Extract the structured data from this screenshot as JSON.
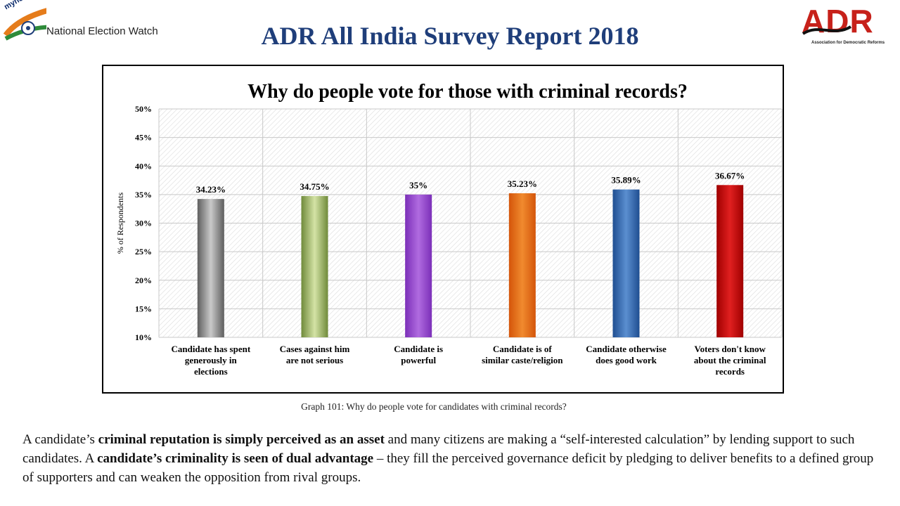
{
  "header": {
    "myneta_label": "myneta.info",
    "logo_left_text": "National Election Watch",
    "title": "ADR All India Survey Report 2018",
    "logo_right_text": "ADR",
    "logo_right_subtext": "Association for Democratic Reforms"
  },
  "colors": {
    "title": "#1f3e7a",
    "adr_red": "#c7211a"
  },
  "chart_data": {
    "type": "bar",
    "title": "Why do people vote for those with criminal records?",
    "xlabel": "",
    "ylabel": "% of Respondents",
    "ylim": [
      0.1,
      0.5
    ],
    "yticks": [
      "10%",
      "15%",
      "20%",
      "25%",
      "30%",
      "35%",
      "40%",
      "45%",
      "50%"
    ],
    "grid": true,
    "categories": [
      [
        "Candidate has spent",
        "generously in",
        "elections"
      ],
      [
        "Cases against him",
        "are not serious"
      ],
      [
        "Candidate is",
        "powerful"
      ],
      [
        "Candidate is of",
        "similar caste/religion"
      ],
      [
        "Candidate otherwise",
        "does good work"
      ],
      [
        "Voters don't know",
        "about the criminal",
        "records"
      ]
    ],
    "values": [
      0.3423,
      0.3475,
      0.35,
      0.3523,
      0.3589,
      0.3667
    ],
    "data_labels": [
      "34.23%",
      "34.75%",
      "35%",
      "35.23%",
      "35.89%",
      "36.67%"
    ],
    "bar_colors": [
      [
        "#5e5e5e",
        "#c9c9c9"
      ],
      [
        "#6f8a3a",
        "#d4e3a6"
      ],
      [
        "#7b2fb8",
        "#b06be0"
      ],
      [
        "#d4550a",
        "#f08a2e"
      ],
      [
        "#1f4e91",
        "#5b8fd0"
      ],
      [
        "#a00000",
        "#e02020"
      ]
    ]
  },
  "caption": "Graph 101:  Why do people vote for candidates with criminal records?",
  "body": {
    "p1": "A candidate’s ",
    "b1": "criminal reputation is simply perceived as an asset",
    "p2": " and many citizens are making a “self-interested calculation” by lending support to such candidates. A ",
    "b2": "candidate’s criminality is seen of dual advantage",
    "p3": " – they fill the perceived governance deficit by pledging to deliver benefits to a defined group of  supporters and can weaken the opposition from rival groups."
  }
}
